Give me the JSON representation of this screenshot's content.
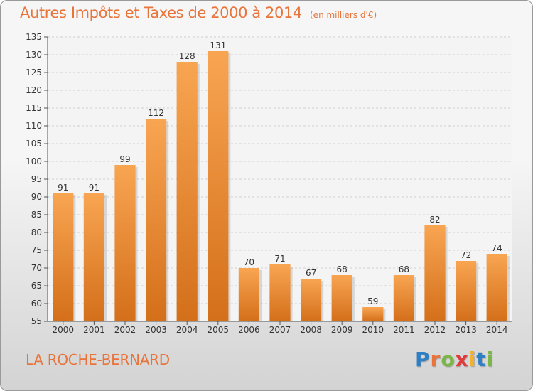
{
  "title": "Autres Impôts et Taxes de 2000 à 2014",
  "subtitle": "(en milliers d'€)",
  "commune": "LA ROCHE-BERNARD",
  "logo": {
    "letters": [
      "P",
      "r",
      "o",
      "x",
      "i",
      "t",
      "i"
    ],
    "colors": [
      "#2e7fc4",
      "#e8743b",
      "#7ab648",
      "#e03a3a",
      "#f2b233",
      "#2e7fc4",
      "#7ab648"
    ]
  },
  "colors": {
    "bar_top": "#f8a552",
    "bar_bottom": "#d46f1a",
    "title": "#e8743b"
  },
  "chart_data": {
    "type": "bar",
    "categories": [
      "2000",
      "2001",
      "2002",
      "2003",
      "2004",
      "2005",
      "2006",
      "2007",
      "2008",
      "2009",
      "2010",
      "2011",
      "2012",
      "2013",
      "2014"
    ],
    "values": [
      91,
      91,
      99,
      112,
      128,
      131,
      70,
      71,
      67,
      68,
      59,
      68,
      82,
      72,
      74
    ],
    "ylim": [
      55,
      135
    ],
    "yticks": [
      55,
      60,
      65,
      70,
      75,
      80,
      85,
      90,
      95,
      100,
      105,
      110,
      115,
      120,
      125,
      130,
      135
    ],
    "grid": true,
    "title": "Autres Impôts et Taxes de 2000 à 2014",
    "xlabel": "",
    "ylabel": ""
  }
}
